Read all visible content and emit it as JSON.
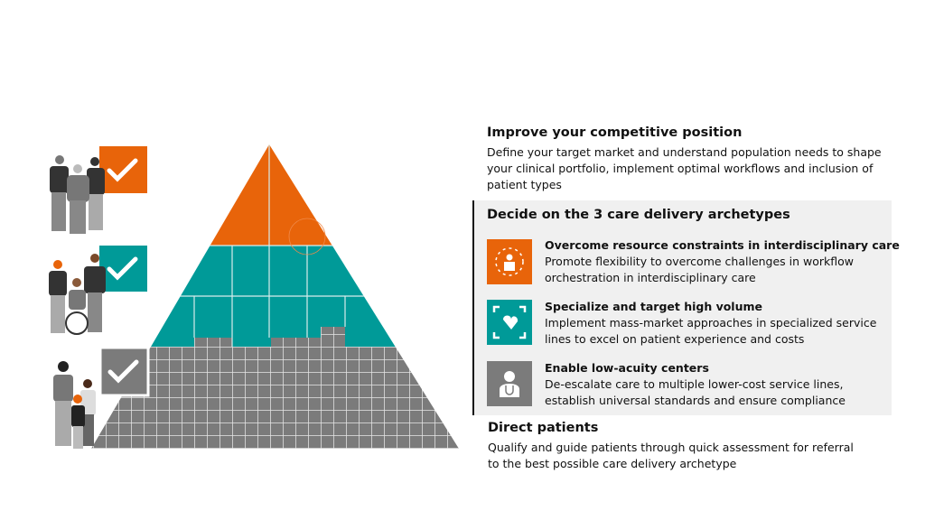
{
  "colors": {
    "orange": "#e8640a",
    "teal": "#009a98",
    "gray": "#7b7b7b",
    "panel": "#f0f0f0"
  },
  "sections": {
    "competitive": {
      "title": "Improve your competitive position",
      "body": "Define your target market and understand population needs to shape your clinical portfolio, implement optimal workflows and inclusion of patient types"
    },
    "archetypes": {
      "title": "Decide on the 3 care delivery archetypes",
      "items": [
        {
          "icon": "people-network-icon",
          "title": "Overcome resource constraints in interdisciplinary care",
          "body": "Promote flexibility to overcome challenges in workflow orchestration in interdisciplinary care"
        },
        {
          "icon": "heart-scan-icon",
          "title": "Specialize and target high volume",
          "body": "Implement mass-market approaches in specialized service lines to excel on patient experience and costs"
        },
        {
          "icon": "doctor-stethoscope-icon",
          "title": "Enable low-acuity centers",
          "body": "De-escalate care to multiple lower-cost service lines, establish universal standards and ensure compliance"
        }
      ]
    },
    "direct": {
      "title": "Direct patients",
      "body": "Qualify and guide patients through quick assessment for referral to the best possible care delivery archetype"
    }
  }
}
